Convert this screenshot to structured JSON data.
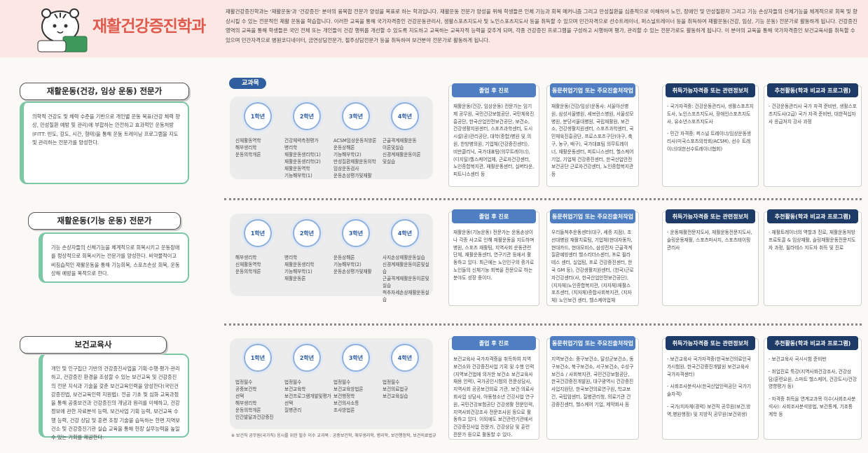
{
  "header": {
    "title": "재활건강증진학과",
    "description": "재활건강증진학과는 '재활운동'과 '건강증진' 분야의 융복합 전문가 양성을 목표로 하는 학과입니다. 재활운동 전문가 양성을 위해 학생들은 인체 기능과 회복 메커니즘 그리고 만성질환을 심층적으로 이해하여 노인, 장애인 및 만성질환자 그리고 기능 손상자들의 신체기능을 체계적으로 회복 및 향상시킬 수 있는 전문적인 재활 운동을 학습합니다. 이러한 교육을 통해 국가자격증인 건강운동관리사, 생활스포츠지도사 및 노인스포츠지도사 등을 취득할 수 있으며 민간자격으로 선수트레이너, 퍼스널트레이너 등을 취득하여 재활운동(건강, 임상, 기능 운동) 전문가로 활동하게 됩니다. 건강증진 영역의 교육을 통해 학생들은 국민 전체 또는 개인들이 건강 행위를 개선할 수 있도록 지도하고 교육하는 교육자적 능력을 갖추게 되며, 각종 건강증진 프로그램을 구성하고 시행하며 평가, 관리할 수 있는 전문가로도 활동하게 됩니다. 이 분야의 교육을 통해 국가자격증인 보건교육사를 취득할 수 있으며 민간자격으로 병원코디네이터, 금연상담전문가, 절주상담전문가 등을 취득하여 보건분야 전문가로 활동하게 됩니다."
  },
  "labels": {
    "curriculum": "교과목",
    "careers": "졸업 후 진로",
    "employers": "동문취업기업 또는 주요진출처작업",
    "certificates": "취득가능자격증 또는 관련정보처",
    "activities": "추천활동(학과 비교과 프로그램)"
  },
  "tracks": [
    {
      "name": "재활운동(건강, 임상 운동) 전문가",
      "description": "의학적 건강도 및 체력 수준을 기반으로 개인별 운동 목표(건강 체력 향상, 만성질환 예방 및 관리)에 부합하는 안전하고 효과적인 운동처방(FITT: 빈도, 강도, 시간, 형태)을 통해 운동 트레이닝 프로그램을 지도 및 관리하는 전문가를 양성한다.",
      "years": [
        {
          "label": "1학년",
          "courses": [
            "신체활동역학",
            "해부생리학",
            "운동의학개론"
          ]
        },
        {
          "label": "2학년",
          "courses": [
            "건강체력측정평가",
            "병리학",
            "재활운동생리학(1)",
            "재활운동생리학(2)",
            "재활운동역학",
            "기능해부학(1)"
          ]
        },
        {
          "label": "3학년",
          "courses": [
            "ACSM임상운동처방론",
            "운동상해론",
            "기능해부학(2)",
            "만성질환재활운동의학",
            "임상운동검사",
            "운동손상평가및재활"
          ]
        },
        {
          "label": "4학년",
          "courses": [
            "근골격계재활운동",
            "이론및실습",
            "신경계재활운동이론",
            "및실습"
          ]
        }
      ],
      "careers": [
        "재활운동(건강, 임상운동) 전문가는 임기제 공무원, 국민건강보험공단, 국민체육진흥공단, 한국산업안전보건공단, 보건소, 건강생활지원센터, 스포츠과학센터, 도시시설(공)관리공단, 대학(종합)병원 및 의원, 한방병의원, 기업체(건강증진센터), 비만클리닉, 국가대표팀(의무트레이너), (디지털)헬스케어업체, 근로자건강센터, 노인종합복지관, 재활운동센터, 실버타운, 피트니스센터 등"
      ],
      "employers": [
        "재활운동(건강/임상)운동사: 서울아산병원, 삼성서울병원, 세브란스병원, 서울성모병원, 분당서울대병원, 국립재활원, 보건소, 건강생활지원센터, 스포츠과학센터, 국민체육진흥공단, 프로스포츠구단(야구, 축구, 농구, 배구), 국가대표팀 의무트레이너, 재활운동센터, 피트니스센터, 헬스케어기업, 기업체 건강증진센터, 한국산업안전보건공단 근로자건강센터, 노인종합복지관 등"
      ],
      "certificates": [
        "- 국가자격증: 건강운동관리사, 생활스포츠지도사, 노인스포츠지도사, 장애인스포츠지도사, 유소년스포츠지도사",
        "- 민간 자격증: 퍼스널 트레이너/임상운동생리사(미국스포츠의학회/ACSM), 선수 트레이너(대한선수트레이너협회)"
      ],
      "activities": [
        "- 건강운동관리사 국가 자격 준비반, 생활스포츠지도사(2급) 국가 자격 준비반, 대한적십자사 응급처치 강사 과정"
      ]
    },
    {
      "name": "재활운동(기능 운동) 전문가",
      "description": "기능 손상자들의 신체기능을 체계적으로 회복시키고 운동장애를 정상적으로 회복시키는 전문가를 양성한다. 비약물적이고 비침습적인 재활운동을 통해 기능회복, 스포츠손상 회복, 운동상해 예방을 목적으로 한다.",
      "years": [
        {
          "label": "1학년",
          "courses": [
            "해부생리학",
            "신체활동역학",
            "운동의학개론"
          ]
        },
        {
          "label": "2학년",
          "courses": [
            "병리학",
            "재활운동생리학",
            "기능해부학(1)",
            "재활운동론"
          ]
        },
        {
          "label": "3학년",
          "courses": [
            "운동상해론",
            "기능해부학(2)",
            "운동손상평가및재활"
          ]
        },
        {
          "label": "4학년",
          "courses": [
            "사지손상재활운동실습",
            "신경계재활운동이론및실습",
            "근골격계재활운동이론및실습",
            "척추자세손상재활운동실습"
          ]
        }
      ],
      "careers": [
        "재활운동(기능운동) 전문가는 운동손상이나 각종 사고로 인해 재활운동을 지도하며 병원, 스포츠 재활팀, 지역사회 운동관련 단체, 재활운동센터, 연구기관 등에서 활동하고 있다. 최근에는 노인인구의 증가로 노인들의 신체기능 회복을 전문으로 하는 분야도 성장 중이다."
      ],
      "employers": [
        "우리들척추운동센터(대구, 세종 지점), 조선대병원 재활치료팀, 기업체(현대자동차, 현대카드, 현대모비스, 삼성전자 근골격계질환예방센터 헬스리더스센터, 프로 필라테스 센터, 실업팀, 프로 건강증진센터, 한국 GM 등), 건강생활지원센터, (한국)근로자건강센터(사, 한국산업안전보건공단), (지자체)노인종합복지관, (지자체)재활스포츠센터, (지자체)종합사회복지관, (지자체) 노인보건 센터, 헬스케어업체"
      ],
      "certificates": [
        "- 운동재활전문지도사, 재활운동전문지도사, 슬링운동재활, 스포츠마사지, 스포츠테이핑관리사"
      ],
      "activities": [
        "- 재활트레이너의 역할과 진로, 재활운동처방프로토콜 & 임상재활, 슬링재활운동전문지도자 과정, 필라테스 지도자 취득 및 진로"
      ]
    },
    {
      "name": "보건교육사",
      "description": "개인 및 인구집단 기반의 건강증진사업을 기획·수행·평가·관리하고, 건강증진 환경을 조성할 수 있는 보건교육 및 건강증진의 전문 지식과 기술을 갖춘 보건교육인력을 양성한다(국민건강증진법, 보건교육인력 지원법). 전공 기초 및 심화 교육과정을 통해 공중보건과 건강증진의 개념과 원리를 이해하고, 건강정보에 관한 자료분석 능력, 보건사업 기획 능력, 보건교육 수행 능력, 건강 상담 및 훈련 조정 기술을 습득하는 한편 지역보건소 및 건강증진기관 실습 교육을 통해 현장 실무능력을 높일 수 있는 기회를 제공한다.",
      "years": [
        {
          "label": "1학년",
          "courses": [
            "법정필수",
            "공중보건학",
            "선택",
            "해부생리학",
            "운동의학개론",
            "인간발달과건강증진"
          ]
        },
        {
          "label": "2학년",
          "courses": [
            "법정필수",
            "보건교육학",
            "보건프로그램개발및평가",
            "선택",
            "질병관리"
          ]
        },
        {
          "label": "3학년",
          "courses": [
            "법정필수",
            "보건교육방법론",
            "보건행정학",
            "보건의사소통",
            "조사방법론"
          ]
        },
        {
          "label": "4학년",
          "courses": [
            "법정필수",
            "보건의료법규",
            "보건교육실습"
          ]
        }
      ],
      "careers": [
        "보건교육사 국가자격증을 취득하여 지역보건소와 건강증진사업 기획 및 수행 인력(지역보건법에 의거한 보건소 보건교육사 채용 인력), 국가공인시험의 전문상담사, 지역사회 공공보건의료 기관, 보건·의료사회사업 상담사, 아동청소년 건강사업 연구원, 국민건강보험공단 건강생활 전문인력, 지역사회건강조사 전문조사원 등으로 활동하고 있다. 이외에도 보건관련기관에서 건강증진사업 전문가, 건강상담 및 훈련 전문가 등으로 활동할 수 있다."
      ],
      "employers": [
        "지역보건소: 중구보건소, 달성군보건소, 동구보건소, 북구보건소, 서구보건소, 수성구보건소 / 사회복지관, 국민건강보험공단, 한국건강증진개발원, 대구광역시 건강증진사업지원단, 한국보건의료연구원, 학교보건, 국립암센터, 질병관리청, 의료기관 건강증진센터, 헬스케어 기업, 제약회사 등"
      ],
      "certificates": [
        "- 보건교육사 국가자격증(한국보건의료인국가시험원, 한국건강증진개발원 보건교육사 국가자격센터)",
        "- 사회조사분석사(한국산업인력공단 국가기술자격)",
        "- 국가/지자체(경력) 보건직 공무원(보건,방역,병원행정) 및 지방직 공무원(보건위생)"
      ],
      "activities": [
        "- 보건교육사 국시시험 준비반",
        "- 취업진로 특강(지역사회건강조사, 건강상담/훈련요원, 스마트 헬스케어, 건강도시/건강영향평가 등)",
        "- 자격증 취득을 연계교과목 이수(사회조사분석사): 사회조사분석방법, 보건통계, 기초통계학 등"
      ]
    }
  ],
  "footnote": "※ 보건직 공무원(국가직) 응시를 위한 필수 이수 교과목 : 공중보건학, 해부생리학, 병리학, 보건행정학, 보건의료법규"
}
